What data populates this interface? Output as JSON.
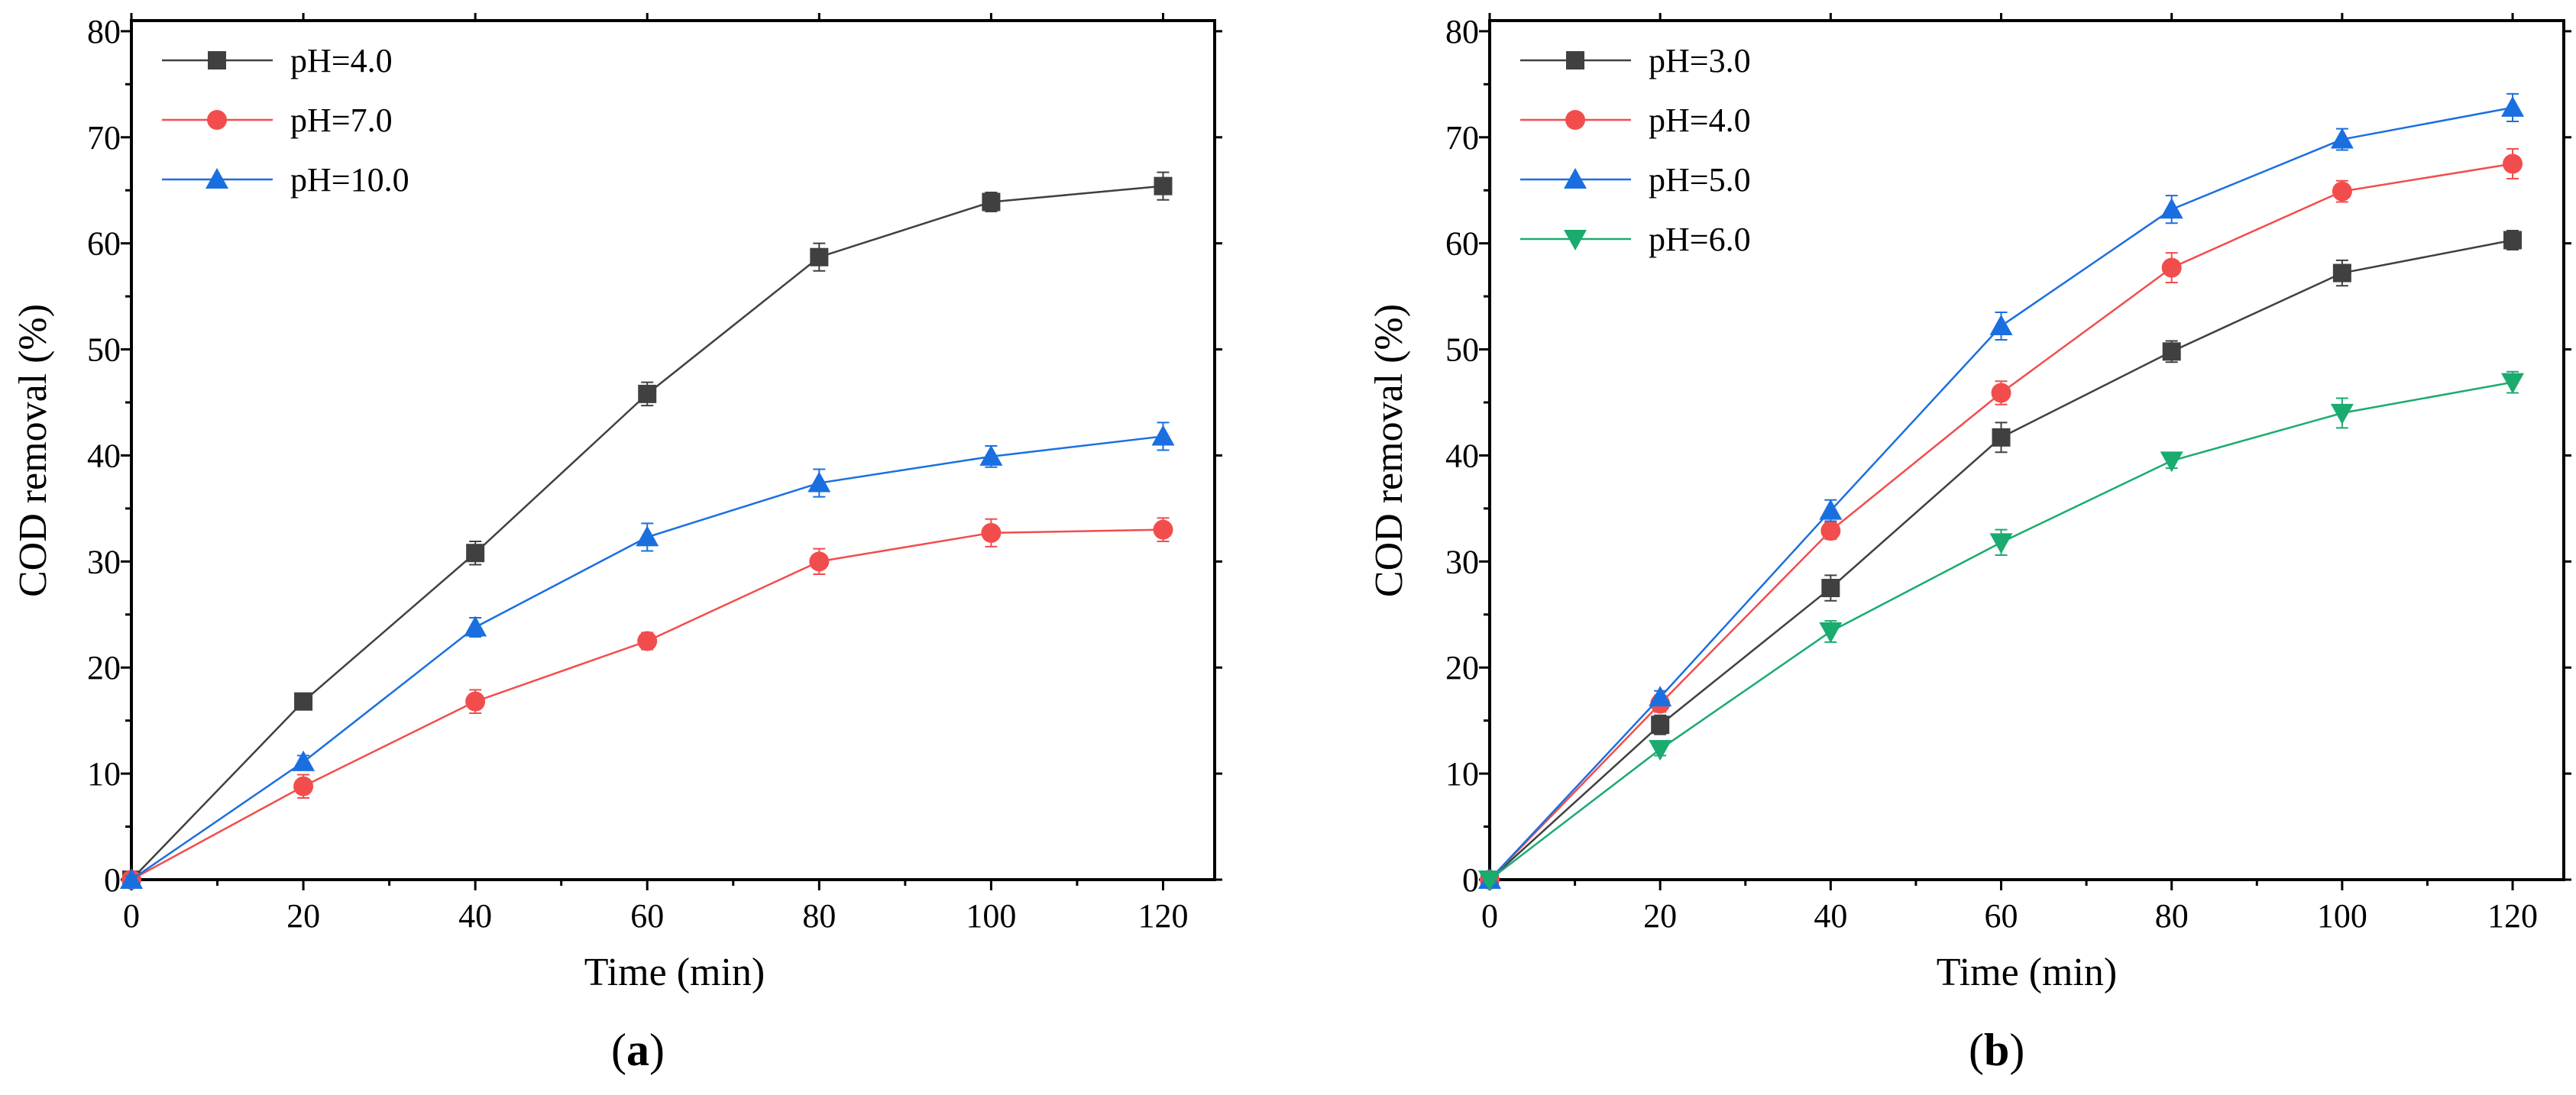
{
  "chart_data": [
    {
      "type": "line",
      "panel_label": "a",
      "xlabel": "Time (min)",
      "ylabel": "COD removal (%)",
      "xlim": [
        0,
        126
      ],
      "ylim": [
        0,
        81
      ],
      "xticks": [
        0,
        20,
        40,
        60,
        80,
        100,
        120
      ],
      "yticks": [
        0,
        10,
        20,
        30,
        40,
        50,
        60,
        70,
        80
      ],
      "legend_position": "top-left",
      "x": [
        0,
        20,
        40,
        60,
        80,
        100,
        120
      ],
      "series": [
        {
          "name": "pH=4.0",
          "color": "#404040",
          "marker": "square",
          "values": [
            0,
            16.8,
            30.8,
            45.8,
            58.7,
            63.9,
            65.4
          ],
          "errors": [
            0.3,
            0.6,
            1.1,
            1.1,
            1.3,
            0.9,
            1.3
          ]
        },
        {
          "name": "pH=7.0",
          "color": "#f24d4d",
          "marker": "circle",
          "values": [
            0,
            8.8,
            16.8,
            22.5,
            30.0,
            32.7,
            33.0
          ],
          "errors": [
            0.3,
            1.1,
            1.1,
            0.8,
            1.2,
            1.3,
            1.1
          ]
        },
        {
          "name": "pH=10.0",
          "color": "#1a6fe0",
          "marker": "triangle-up",
          "values": [
            0,
            11.1,
            23.8,
            32.3,
            37.4,
            39.9,
            41.8
          ],
          "errors": [
            0.3,
            0.6,
            0.9,
            1.3,
            1.3,
            1.0,
            1.3
          ]
        }
      ]
    },
    {
      "type": "line",
      "panel_label": "b",
      "xlabel": "Time (min)",
      "ylabel": "COD removal (%)",
      "xlim": [
        0,
        126
      ],
      "ylim": [
        0,
        81
      ],
      "xticks": [
        0,
        20,
        40,
        60,
        80,
        100,
        120
      ],
      "yticks": [
        0,
        10,
        20,
        30,
        40,
        50,
        60,
        70,
        80
      ],
      "legend_position": "top-left",
      "x": [
        0,
        20,
        40,
        60,
        80,
        100,
        120
      ],
      "series": [
        {
          "name": "pH=3.0",
          "color": "#404040",
          "marker": "square",
          "values": [
            0,
            14.6,
            27.5,
            41.7,
            49.8,
            57.2,
            60.3
          ],
          "errors": [
            0.3,
            0.9,
            1.2,
            1.4,
            1.0,
            1.2,
            0.9
          ]
        },
        {
          "name": "pH=4.0",
          "color": "#f24d4d",
          "marker": "circle",
          "values": [
            0,
            16.6,
            32.9,
            45.9,
            57.7,
            64.9,
            67.5
          ],
          "errors": [
            0.3,
            0.8,
            0.8,
            1.1,
            1.4,
            1.0,
            1.4
          ]
        },
        {
          "name": "pH=5.0",
          "color": "#1a6fe0",
          "marker": "triangle-up",
          "values": [
            0,
            17.2,
            34.8,
            52.2,
            63.2,
            69.8,
            72.8
          ],
          "errors": [
            0.3,
            0.6,
            1.0,
            1.3,
            1.3,
            1.0,
            1.3
          ]
        },
        {
          "name": "pH=6.0",
          "color": "#1aab6e",
          "marker": "triangle-down",
          "values": [
            0,
            12.3,
            23.4,
            31.8,
            39.5,
            44.0,
            46.9
          ],
          "errors": [
            0.3,
            0.6,
            1.0,
            1.2,
            0.7,
            1.4,
            1.0
          ]
        }
      ]
    }
  ]
}
